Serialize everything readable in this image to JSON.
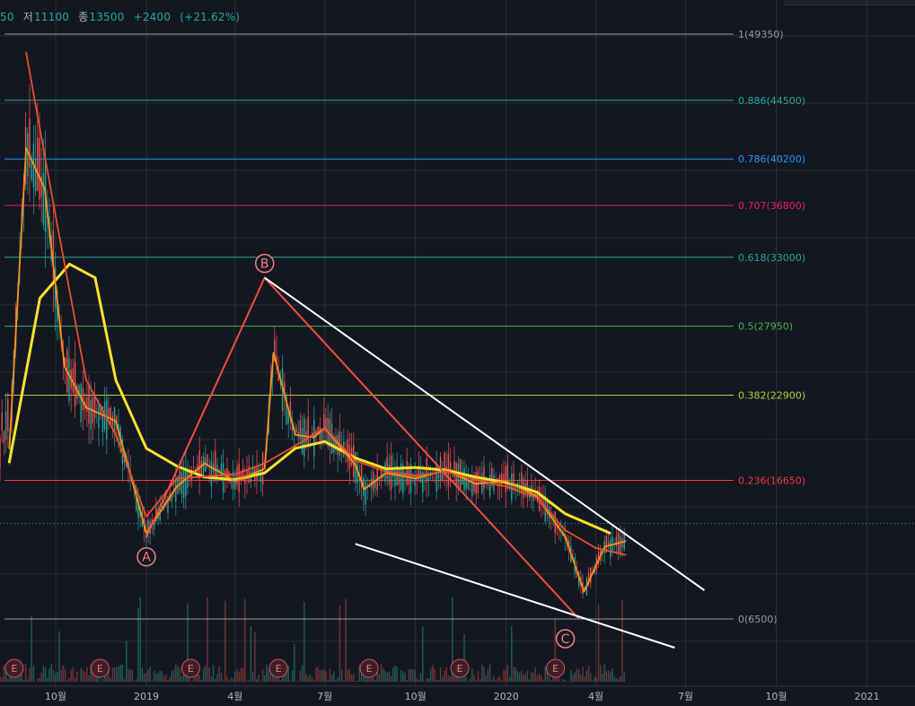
{
  "header": {
    "prefix": "50",
    "low_label": "저",
    "low_value": "11100",
    "close_label": "종",
    "close_value": "13500",
    "change": "+2400",
    "change_pct": "(+21.62%)"
  },
  "chart_data": {
    "type": "line",
    "title": "",
    "x_ticks": [
      "10월",
      "2019",
      "4월",
      "7월",
      "10월",
      "2020",
      "4월",
      "7월",
      "10월",
      "2021"
    ],
    "price_range": [
      6500,
      49350
    ],
    "fib_levels": [
      {
        "ratio": "1",
        "price": 49350,
        "label": "1(49350)",
        "color": "#9598a1"
      },
      {
        "ratio": "0.886",
        "price": 44500,
        "label": "0.886(44500)",
        "color": "#26a69a"
      },
      {
        "ratio": "0.786",
        "price": 40200,
        "label": "0.786(40200)",
        "color": "#2196f3"
      },
      {
        "ratio": "0.707",
        "price": 36800,
        "label": "0.707(36800)",
        "color": "#e91e63"
      },
      {
        "ratio": "0.618",
        "price": 33000,
        "label": "0.618(33000)",
        "color": "#26a69a"
      },
      {
        "ratio": "0.5",
        "price": 27950,
        "label": "0.5(27950)",
        "color": "#4caf50"
      },
      {
        "ratio": "0.382",
        "price": 22900,
        "label": "0.382(22900)",
        "color": "#c0ca33"
      },
      {
        "ratio": "0.236",
        "price": 16650,
        "label": "0.236(16650)",
        "color": "#f23645"
      },
      {
        "ratio": "0",
        "price": 6500,
        "label": "0(6500)",
        "color": "#9598a1"
      }
    ],
    "current_price": 13500,
    "pattern_points": [
      {
        "label": "A",
        "date": "2019-01",
        "price": 12500
      },
      {
        "label": "B",
        "date": "2019-05",
        "price": 31500
      },
      {
        "label": "C",
        "date": "2020-03",
        "price": 6500
      }
    ],
    "earnings_markers": [
      "E",
      "E",
      "E",
      "E",
      "E",
      "E",
      "E"
    ],
    "series": [
      {
        "name": "",
        "color": "#f7e22c",
        "values": [
          [
            "2018-08-15",
            18000
          ],
          [
            "2018-09-15",
            30000
          ],
          [
            "2018-10-15",
            32500
          ],
          [
            "2018-11-10",
            31500
          ],
          [
            "2018-12-01",
            24000
          ],
          [
            "2019-01-01",
            19000
          ],
          [
            "2019-02-01",
            17700
          ],
          [
            "2019-03-01",
            16900
          ],
          [
            "2019-04-01",
            16700
          ],
          [
            "2019-05-01",
            17200
          ],
          [
            "2019-06-01",
            19000
          ],
          [
            "2019-07-01",
            19500
          ],
          [
            "2019-08-01",
            18300
          ],
          [
            "2019-09-01",
            17500
          ],
          [
            "2019-10-01",
            17600
          ],
          [
            "2019-11-01",
            17400
          ],
          [
            "2019-12-01",
            16900
          ],
          [
            "2020-01-01",
            16500
          ],
          [
            "2020-02-01",
            15800
          ],
          [
            "2020-03-01",
            14200
          ],
          [
            "2020-04-15",
            12800
          ]
        ]
      },
      {
        "name": "",
        "color": "#f7931a",
        "values": [
          [
            "2018-08-15",
            19000
          ],
          [
            "2018-09-01",
            41000
          ],
          [
            "2018-09-20",
            38000
          ],
          [
            "2018-10-10",
            25000
          ],
          [
            "2018-11-01",
            22000
          ],
          [
            "2018-12-01",
            21000
          ],
          [
            "2019-01-01",
            12800
          ],
          [
            "2019-02-01",
            16200
          ],
          [
            "2019-03-01",
            17900
          ],
          [
            "2019-04-01",
            16600
          ],
          [
            "2019-05-01",
            17500
          ],
          [
            "2019-05-10",
            26000
          ],
          [
            "2019-06-01",
            20000
          ],
          [
            "2019-06-20",
            19800
          ],
          [
            "2019-07-01",
            20500
          ],
          [
            "2019-08-01",
            17800
          ],
          [
            "2019-08-10",
            16000
          ],
          [
            "2019-09-01",
            17200
          ],
          [
            "2019-10-01",
            16800
          ],
          [
            "2019-11-01",
            17400
          ],
          [
            "2019-12-01",
            16400
          ],
          [
            "2020-01-01",
            16600
          ],
          [
            "2020-02-01",
            15500
          ],
          [
            "2020-03-01",
            12500
          ],
          [
            "2020-03-20",
            8500
          ],
          [
            "2020-04-10",
            11800
          ],
          [
            "2020-05-01",
            12200
          ]
        ]
      },
      {
        "name": "",
        "color": "#e8502d",
        "values": [
          [
            "2018-09-01",
            48000
          ],
          [
            "2018-10-01",
            36000
          ],
          [
            "2018-11-01",
            24000
          ],
          [
            "2018-12-01",
            20000
          ],
          [
            "2019-01-01",
            14000
          ],
          [
            "2019-02-01",
            16800
          ],
          [
            "2019-04-01",
            17100
          ],
          [
            "2019-05-01",
            17900
          ],
          [
            "2019-06-01",
            19200
          ],
          [
            "2019-07-01",
            20500
          ],
          [
            "2019-08-01",
            18100
          ],
          [
            "2019-09-01",
            17300
          ],
          [
            "2019-10-01",
            17000
          ],
          [
            "2019-11-01",
            17300
          ],
          [
            "2019-12-01",
            16700
          ],
          [
            "2020-01-01",
            16200
          ],
          [
            "2020-02-01",
            15400
          ],
          [
            "2020-03-01",
            13000
          ],
          [
            "2020-04-01",
            11700
          ],
          [
            "2020-05-01",
            11200
          ]
        ]
      }
    ],
    "trendlines": [
      {
        "kind": "abc",
        "color": "#f04e3e",
        "points": [
          [
            "2019-01-01",
            12500
          ],
          [
            "2019-05-01",
            31500
          ],
          [
            "2020-03-15",
            6500
          ]
        ]
      },
      {
        "kind": "wedge-upper",
        "color": "#ffffff",
        "points": [
          [
            "2019-05-01",
            31500
          ],
          [
            "2020-07-20",
            8600
          ]
        ]
      },
      {
        "kind": "wedge-lower",
        "color": "#ffffff",
        "points": [
          [
            "2019-08-01",
            12000
          ],
          [
            "2020-06-20",
            4400
          ]
        ]
      }
    ],
    "grid": true,
    "legend": "none"
  }
}
